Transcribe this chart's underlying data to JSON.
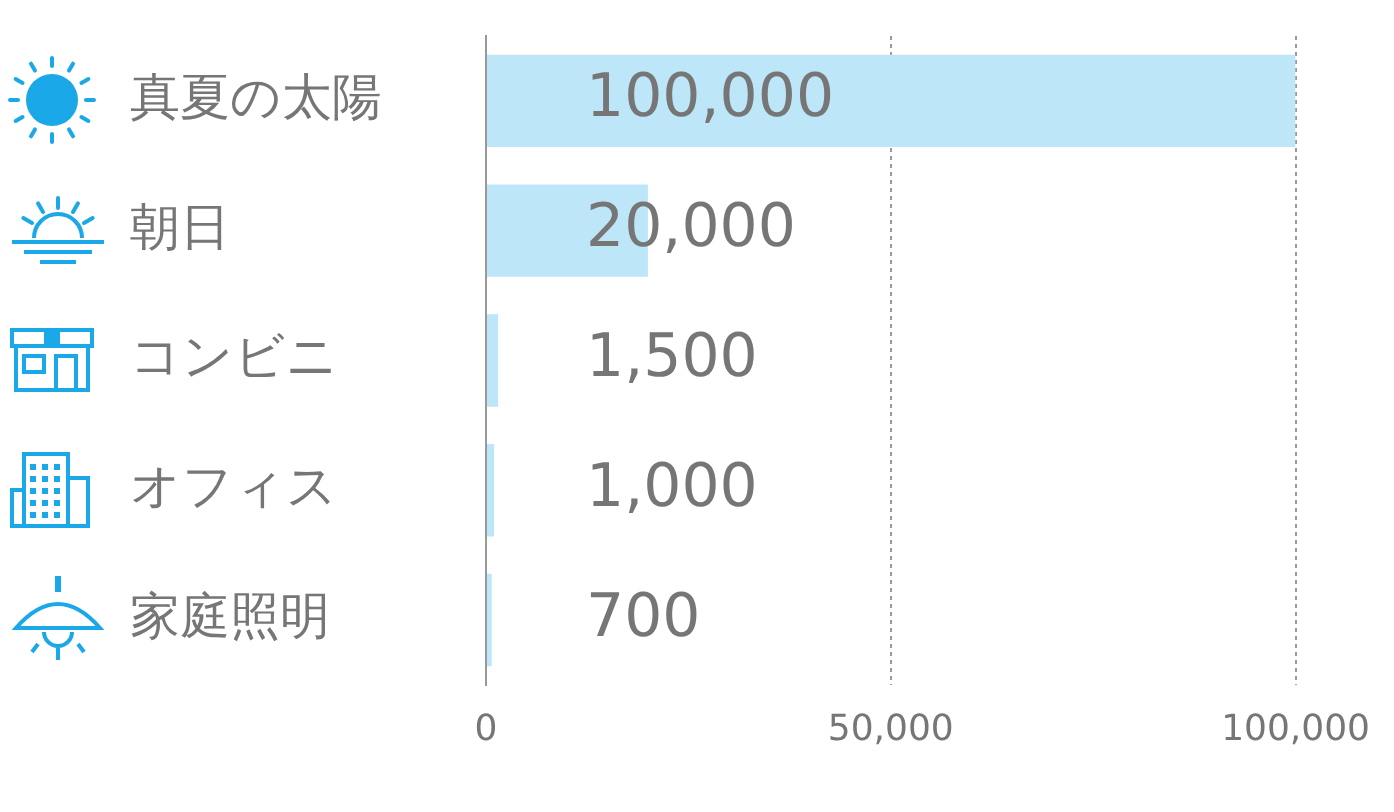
{
  "chart_data": {
    "type": "bar",
    "orientation": "horizontal",
    "categories": [
      "真夏の太陽",
      "朝日",
      "コンビニ",
      "オフィス",
      "家庭照明"
    ],
    "values": [
      100000,
      20000,
      1500,
      1000,
      700
    ],
    "color": "#bde6f8",
    "xlim": [
      0,
      100000
    ],
    "xticks": [
      {
        "value": 0,
        "label": "0"
      },
      {
        "value": 50000,
        "label": "50,000"
      },
      {
        "value": 100000,
        "label": "100,000"
      }
    ],
    "value_labels": [
      "100,000",
      "20,000",
      "1,500",
      "1,000",
      "700"
    ],
    "grid": "x",
    "legend": false
  }
}
